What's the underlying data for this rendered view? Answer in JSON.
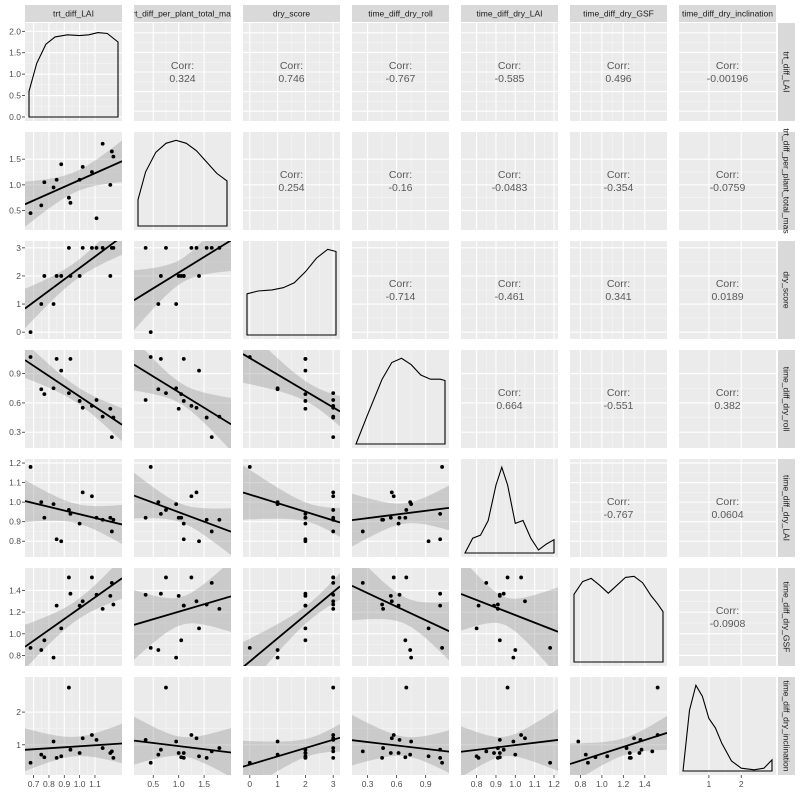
{
  "chart_data": {
    "type": "scatter",
    "variables": [
      "trt_diff_LAI",
      "trt_diff_per_plant_total_mas",
      "dry_score",
      "time_diff_dry_roll",
      "time_diff_dry_LAI",
      "time_diff_dry_GSF",
      "time_diff_dry_inclination"
    ],
    "corr_label": "Corr:",
    "correlations": [
      {
        "row": 0,
        "col": 1,
        "value": "0.324"
      },
      {
        "row": 0,
        "col": 2,
        "value": "0.746"
      },
      {
        "row": 0,
        "col": 3,
        "value": "-0.767"
      },
      {
        "row": 0,
        "col": 4,
        "value": "-0.585"
      },
      {
        "row": 0,
        "col": 5,
        "value": "0.496"
      },
      {
        "row": 0,
        "col": 6,
        "value": "-0.00196"
      },
      {
        "row": 1,
        "col": 2,
        "value": "0.254"
      },
      {
        "row": 1,
        "col": 3,
        "value": "-0.16"
      },
      {
        "row": 1,
        "col": 4,
        "value": "-0.0483"
      },
      {
        "row": 1,
        "col": 5,
        "value": "-0.354"
      },
      {
        "row": 1,
        "col": 6,
        "value": "-0.0759"
      },
      {
        "row": 2,
        "col": 3,
        "value": "-0.714"
      },
      {
        "row": 2,
        "col": 4,
        "value": "-0.461"
      },
      {
        "row": 2,
        "col": 5,
        "value": "0.341"
      },
      {
        "row": 2,
        "col": 6,
        "value": "0.0189"
      },
      {
        "row": 3,
        "col": 4,
        "value": "0.664"
      },
      {
        "row": 3,
        "col": 5,
        "value": "-0.551"
      },
      {
        "row": 3,
        "col": 6,
        "value": "0.382"
      },
      {
        "row": 4,
        "col": 5,
        "value": "-0.767"
      },
      {
        "row": 4,
        "col": 6,
        "value": "0.0604"
      },
      {
        "row": 5,
        "col": 6,
        "value": "-0.0908"
      }
    ],
    "axes": [
      {
        "range": [
          0.67,
          1.25
        ],
        "ticks": [
          "0.7",
          "0.8",
          "0.9",
          "1.0",
          "1.1"
        ],
        "tick_values": [
          0.7,
          0.8,
          0.9,
          1.0,
          1.1
        ],
        "density_range": [
          0,
          2.1
        ],
        "density_ticks": [
          "0.0",
          "0.5",
          "1.0",
          "1.5",
          "2.0"
        ],
        "density_tick_values": [
          0,
          0.5,
          1.0,
          1.5,
          2.0
        ]
      },
      {
        "range": [
          0.2,
          1.95
        ],
        "ticks": [
          "0.5",
          "1.0",
          "1.5"
        ],
        "tick_values": [
          0.5,
          1.0,
          1.5
        ],
        "left_ticks": [
          "0.5",
          "1.0",
          "1.5"
        ],
        "left_tick_values": [
          0.5,
          1.0,
          1.5
        ]
      },
      {
        "range": [
          -0.1,
          3.1
        ],
        "ticks": [
          "0",
          "1",
          "2",
          "3"
        ],
        "tick_values": [
          0,
          1,
          2,
          3
        ]
      },
      {
        "range": [
          0.18,
          1.1
        ],
        "ticks": [
          "0.3",
          "0.6",
          "0.9"
        ],
        "tick_values": [
          0.3,
          0.6,
          0.9
        ]
      },
      {
        "range": [
          0.74,
          1.2
        ],
        "ticks": [
          "0.8",
          "0.9",
          "1.0",
          "1.1",
          "1.2"
        ],
        "tick_values": [
          0.8,
          0.9,
          1.0,
          1.1,
          1.2
        ]
      },
      {
        "range": [
          0.74,
          1.57
        ],
        "ticks": [
          "0.8",
          "1.0",
          "1.2",
          "1.4"
        ],
        "tick_values": [
          0.8,
          1.0,
          1.2,
          1.4
        ]
      },
      {
        "range": [
          0.2,
          2.95
        ],
        "ticks": [
          "1",
          "2"
        ],
        "tick_values": [
          1,
          2
        ]
      }
    ],
    "observations": [
      [
        0.68,
        0.45,
        0,
        1.07,
        1.18,
        0.87,
        0.45
      ],
      [
        0.75,
        0.6,
        1,
        0.74,
        1.0,
        0.85,
        0.7
      ],
      [
        0.77,
        1.05,
        2,
        0.69,
        0.92,
        0.94,
        0.62
      ],
      [
        0.83,
        0.95,
        1,
        0.75,
        0.99,
        0.78,
        1.1
      ],
      [
        0.85,
        1.1,
        2,
        1.05,
        0.81,
        1.26,
        0.6
      ],
      [
        0.88,
        1.4,
        2,
        0.93,
        0.8,
        1.05,
        0.65
      ],
      [
        0.93,
        0.75,
        3,
        0.7,
        0.96,
        1.52,
        2.75
      ],
      [
        0.94,
        0.65,
        2,
        1.05,
        0.94,
        1.37,
        0.85
      ],
      [
        1.0,
        1.1,
        2,
        0.62,
        0.89,
        1.26,
        0.75
      ],
      [
        1.02,
        1.35,
        3,
        0.55,
        1.05,
        1.3,
        1.2
      ],
      [
        1.08,
        1.25,
        3,
        0.57,
        1.03,
        1.52,
        1.3
      ],
      [
        1.11,
        0.35,
        3,
        0.63,
        0.92,
        1.36,
        1.15
      ],
      [
        1.15,
        1.8,
        3,
        0.46,
        0.91,
        1.23,
        0.9
      ],
      [
        1.2,
        1.0,
        2,
        0.54,
        0.92,
        1.35,
        0.75
      ],
      [
        1.21,
        1.65,
        3,
        0.25,
        0.85,
        1.47,
        0.8
      ],
      [
        1.22,
        1.55,
        3,
        0.45,
        0.91,
        1.27,
        0.6
      ]
    ],
    "density_curves": [
      [
        [
          0.67,
          0.6
        ],
        [
          0.72,
          1.25
        ],
        [
          0.78,
          1.7
        ],
        [
          0.84,
          1.87
        ],
        [
          0.92,
          1.92
        ],
        [
          1.0,
          1.9
        ],
        [
          1.06,
          1.92
        ],
        [
          1.12,
          1.97
        ],
        [
          1.18,
          1.95
        ],
        [
          1.25,
          1.75
        ]
      ],
      [
        [
          0.2,
          0.35
        ],
        [
          0.35,
          0.72
        ],
        [
          0.55,
          0.98
        ],
        [
          0.75,
          1.1
        ],
        [
          0.95,
          1.14
        ],
        [
          1.15,
          1.1
        ],
        [
          1.35,
          1.0
        ],
        [
          1.55,
          0.85
        ],
        [
          1.75,
          0.7
        ],
        [
          1.95,
          0.6
        ]
      ],
      [
        [
          -0.1,
          0.75
        ],
        [
          0.3,
          0.8
        ],
        [
          0.8,
          0.82
        ],
        [
          1.2,
          0.86
        ],
        [
          1.6,
          0.95
        ],
        [
          2.0,
          1.15
        ],
        [
          2.4,
          1.4
        ],
        [
          2.8,
          1.56
        ],
        [
          3.1,
          1.52
        ]
      ],
      [
        [
          0.18,
          0.0
        ],
        [
          0.3,
          0.7
        ],
        [
          0.45,
          1.55
        ],
        [
          0.55,
          1.95
        ],
        [
          0.65,
          2.05
        ],
        [
          0.75,
          1.9
        ],
        [
          0.85,
          1.65
        ],
        [
          0.95,
          1.55
        ],
        [
          1.05,
          1.55
        ],
        [
          1.1,
          1.52
        ]
      ],
      [
        [
          0.74,
          0.0
        ],
        [
          0.78,
          0.5
        ],
        [
          0.82,
          0.6
        ],
        [
          0.86,
          1.1
        ],
        [
          0.9,
          2.3
        ],
        [
          0.93,
          2.9
        ],
        [
          0.96,
          2.3
        ],
        [
          1.0,
          1.0
        ],
        [
          1.04,
          1.1
        ],
        [
          1.08,
          0.5
        ],
        [
          1.12,
          0.1
        ],
        [
          1.16,
          0.3
        ],
        [
          1.2,
          0.45
        ]
      ],
      [
        [
          0.74,
          1.28
        ],
        [
          0.82,
          1.52
        ],
        [
          0.9,
          1.58
        ],
        [
          0.98,
          1.45
        ],
        [
          1.06,
          1.3
        ],
        [
          1.14,
          1.45
        ],
        [
          1.22,
          1.6
        ],
        [
          1.3,
          1.62
        ],
        [
          1.38,
          1.5
        ],
        [
          1.46,
          1.25
        ],
        [
          1.52,
          1.1
        ],
        [
          1.57,
          0.95
        ]
      ],
      [
        [
          0.2,
          0.0
        ],
        [
          0.4,
          1.1
        ],
        [
          0.6,
          1.55
        ],
        [
          0.8,
          1.35
        ],
        [
          1.0,
          0.95
        ],
        [
          1.2,
          0.78
        ],
        [
          1.4,
          0.5
        ],
        [
          1.7,
          0.18
        ],
        [
          2.0,
          0.05
        ],
        [
          2.4,
          0.02
        ],
        [
          2.7,
          0.05
        ],
        [
          2.95,
          0.2
        ]
      ]
    ],
    "grid": true,
    "legend": "none"
  }
}
